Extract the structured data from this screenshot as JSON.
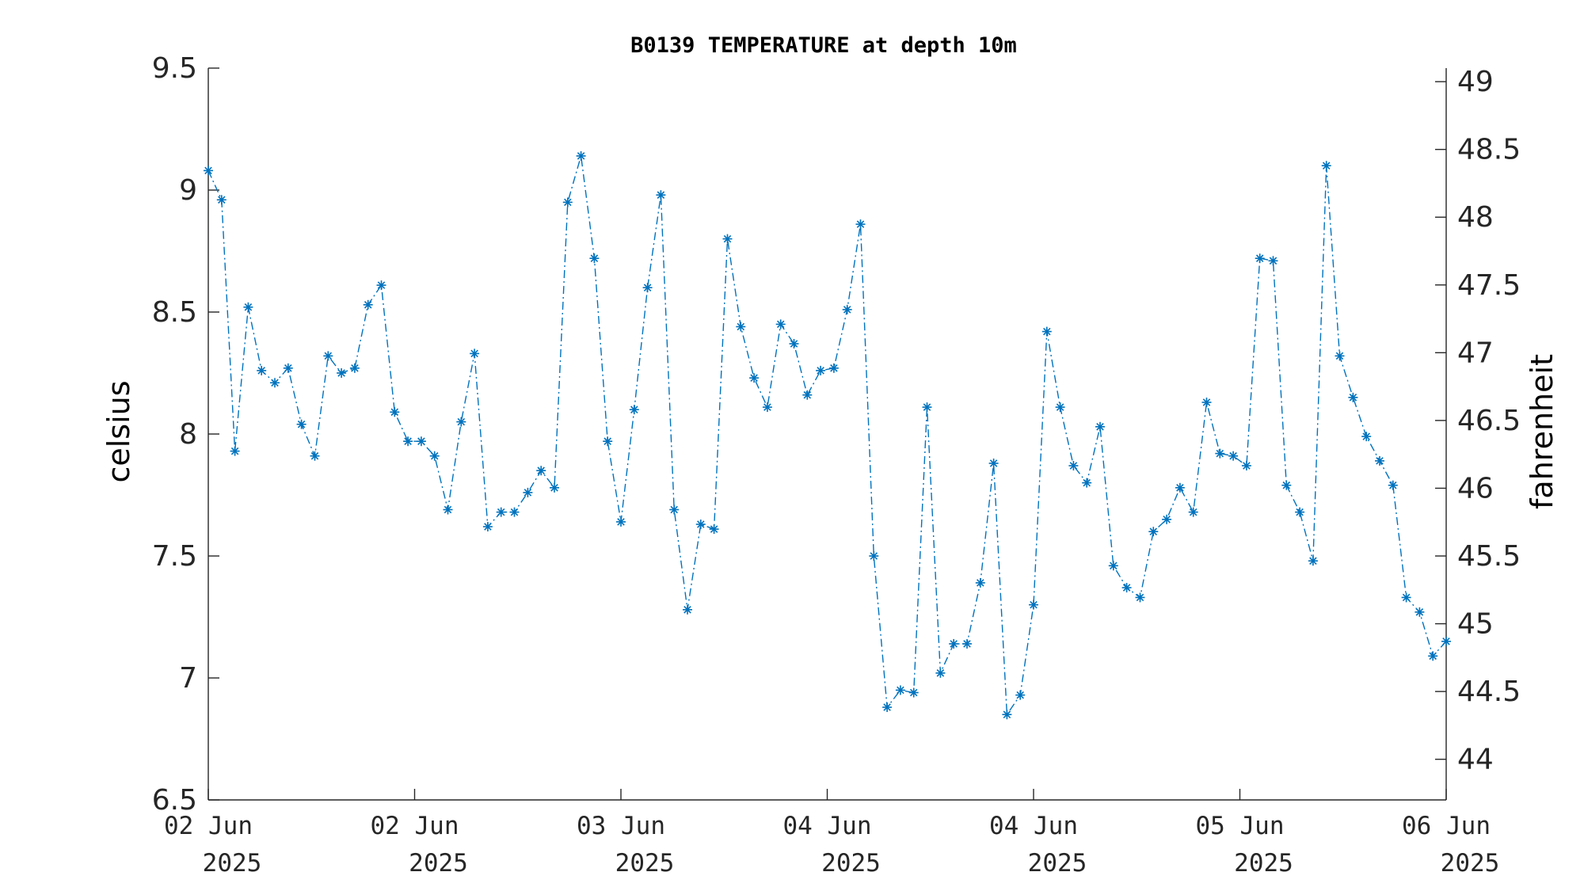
{
  "chart_data": {
    "type": "line",
    "title": "B0139 TEMPERATURE at depth 10m",
    "ylabel": "celsius",
    "ylabel_right": "fahrenheit",
    "ylim": [
      6.5,
      9.5
    ],
    "ylim_right": [
      43.7,
      49.1
    ],
    "yticks": [
      "6.5",
      "7",
      "7.5",
      "8",
      "8.5",
      "9",
      "9.5"
    ],
    "yticks_right": [
      "44",
      "44.5",
      "45",
      "45.5",
      "46",
      "46.5",
      "47",
      "47.5",
      "48",
      "48.5",
      "49"
    ],
    "xticks": [
      {
        "line1": "02 Jun",
        "line2": "2025"
      },
      {
        "line1": "02 Jun",
        "line2": "2025"
      },
      {
        "line1": "03 Jun",
        "line2": "2025"
      },
      {
        "line1": "04 Jun",
        "line2": "2025"
      },
      {
        "line1": "04 Jun",
        "line2": "2025"
      },
      {
        "line1": "05 Jun",
        "line2": "2025"
      },
      {
        "line1": "06 Jun",
        "line2": "2025"
      }
    ],
    "series": [
      {
        "color": "#0072BD",
        "marker": "asterisk",
        "line_style": "dash-dot",
        "values": [
          9.08,
          8.96,
          7.93,
          8.52,
          8.26,
          8.21,
          8.27,
          8.04,
          7.91,
          8.32,
          8.25,
          8.27,
          8.53,
          8.61,
          8.09,
          7.97,
          7.97,
          7.91,
          7.69,
          8.05,
          8.33,
          7.62,
          7.68,
          7.68,
          7.76,
          7.85,
          7.78,
          8.95,
          9.14,
          8.72,
          7.97,
          7.64,
          8.1,
          8.6,
          8.98,
          7.69,
          7.28,
          7.63,
          7.61,
          8.8,
          8.44,
          8.23,
          8.11,
          8.45,
          8.37,
          8.16,
          8.26,
          8.27,
          8.51,
          8.86,
          7.5,
          6.88,
          6.95,
          6.94,
          8.11,
          7.02,
          7.14,
          7.14,
          7.39,
          7.88,
          6.85,
          6.93,
          7.3,
          8.42,
          8.11,
          7.87,
          7.8,
          8.03,
          7.46,
          7.37,
          7.33,
          7.6,
          7.65,
          7.78,
          7.68,
          8.13,
          7.92,
          7.91,
          7.87,
          8.72,
          8.71,
          7.79,
          7.68,
          7.48,
          9.1,
          8.32,
          8.15,
          7.99,
          7.89,
          7.79,
          7.33,
          7.27,
          7.09,
          7.15
        ]
      }
    ],
    "grid": false,
    "legend": "none"
  }
}
